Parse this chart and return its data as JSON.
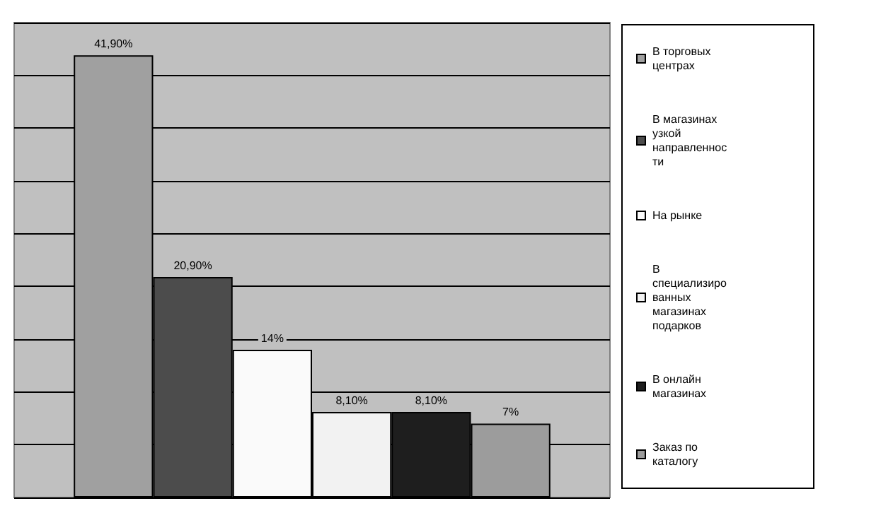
{
  "chart_data": {
    "type": "bar",
    "categories": [
      null
    ],
    "series": [
      {
        "name": "В торговых центрах",
        "color": "#a0a0a0",
        "values": [
          41.9
        ],
        "value_labels": [
          "41,90%"
        ]
      },
      {
        "name": "В магазинах узкой направленности",
        "color": "#4c4c4c",
        "values": [
          20.9
        ],
        "value_labels": [
          "20,90%"
        ]
      },
      {
        "name": "На рынке",
        "color": "#fafafa",
        "values": [
          14
        ],
        "value_labels": [
          "14%"
        ]
      },
      {
        "name": "В специализированных магазинах подарков",
        "color": "#f2f2f2",
        "values": [
          8.1
        ],
        "value_labels": [
          "8,10%"
        ]
      },
      {
        "name": "В онлайн магазинах",
        "color": "#1e1e1e",
        "values": [
          8.1
        ],
        "value_labels": [
          "8,10%"
        ]
      },
      {
        "name": "Заказ по каталогу",
        "color": "#9c9c9c",
        "values": [
          7
        ],
        "value_labels": [
          "7%"
        ]
      }
    ],
    "ylim": [
      0,
      45
    ],
    "yticks": [
      0,
      5,
      10,
      15,
      20,
      25,
      30,
      35,
      40,
      45
    ],
    "grid": "y",
    "legend": "right",
    "tick_labels": false
  }
}
